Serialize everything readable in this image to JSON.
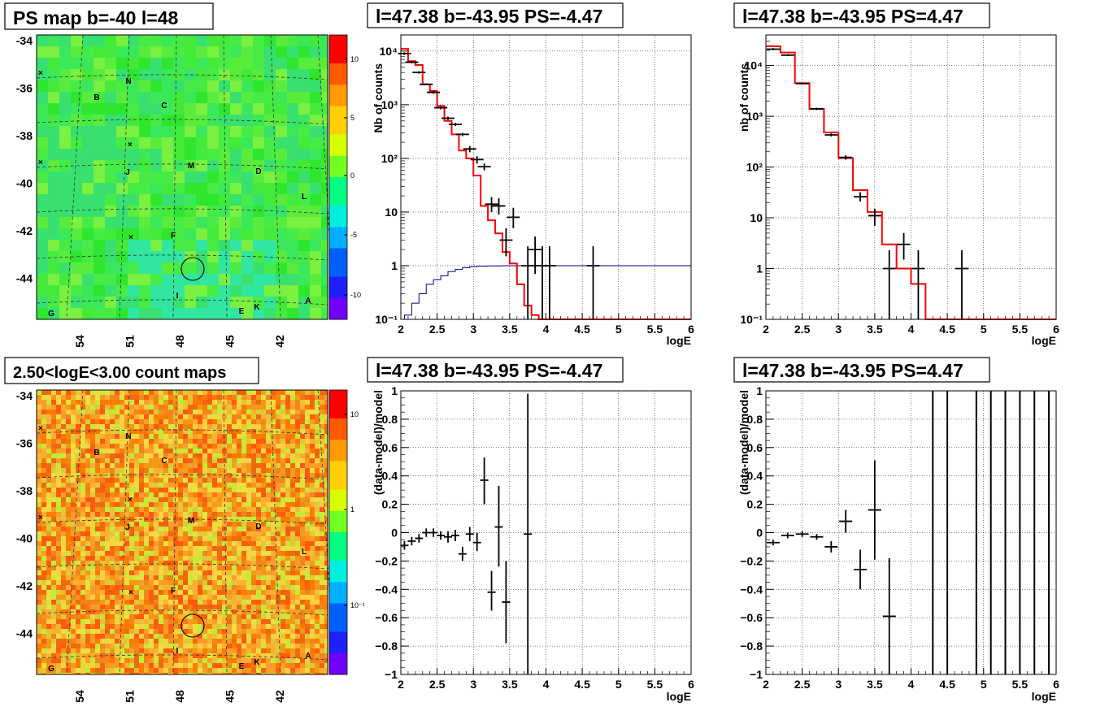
{
  "colors": {
    "model_line": "#ff0000",
    "exposure_line": "#00008b",
    "data_points": "#000000"
  },
  "maps": [
    {
      "title": "PS map b=-40 l=48",
      "type": "heatmap",
      "y_ticks": [
        "-34",
        "-36",
        "-38",
        "-40",
        "-42",
        "-44"
      ],
      "x_ticks": [
        "54",
        "51",
        "48",
        "45",
        "42"
      ],
      "colorbar_ticks": [
        "10",
        "5",
        "0",
        "-5",
        "-10"
      ],
      "colorbar_scale": "linear",
      "palette": "green-dominant",
      "markers": [
        "N",
        "B",
        "C",
        "M",
        "J",
        "D",
        "L",
        "F",
        "I",
        "A",
        "E",
        "K",
        "G"
      ]
    },
    {
      "title": "2.50<logE<3.00 count maps",
      "type": "heatmap",
      "y_ticks": [
        "-34",
        "-36",
        "-38",
        "-40",
        "-42",
        "-44"
      ],
      "x_ticks": [
        "54",
        "51",
        "48",
        "45",
        "42"
      ],
      "colorbar_ticks": [
        "10",
        "1",
        "10⁻¹"
      ],
      "colorbar_scale": "log",
      "palette": "orange-dominant",
      "markers": [
        "N",
        "B",
        "C",
        "M",
        "J",
        "D",
        "L",
        "F",
        "I",
        "A",
        "E",
        "K",
        "G"
      ]
    }
  ],
  "spectra": [
    {
      "title": "l=47.38 b=-43.95 PS=-4.47",
      "type": "line",
      "xlabel": "logE",
      "ylabel": "Nb of counts",
      "x_ticks": [
        "2",
        "2.5",
        "3",
        "3.5",
        "4",
        "4.5",
        "5",
        "5.5",
        "6"
      ],
      "y_ticks": [
        "10⁻¹",
        "1",
        "10",
        "10²",
        "10³",
        "10⁴"
      ],
      "xlim": [
        2,
        6
      ],
      "ylim": [
        0.1,
        20000
      ],
      "yscale": "log",
      "model": {
        "x": [
          2,
          2.1,
          2.2,
          2.3,
          2.4,
          2.5,
          2.6,
          2.7,
          2.8,
          2.9,
          3.0,
          3.1,
          3.2,
          3.3,
          3.4,
          3.5,
          3.6,
          3.7,
          3.8,
          3.9,
          4.0,
          4.1,
          6.0
        ],
        "y": [
          11000,
          6500,
          5500,
          2400,
          1800,
          950,
          500,
          280,
          140,
          100,
          48,
          13,
          7,
          4,
          1.8,
          1.1,
          0.45,
          0.18,
          0.12,
          0.1,
          0.1,
          0.1,
          0.1
        ]
      },
      "exposure": {
        "x": [
          2,
          2.05,
          2.15,
          2.25,
          2.35,
          2.45,
          2.55,
          2.65,
          2.75,
          2.85,
          2.95,
          3.05,
          3.2,
          3.4,
          4.0,
          6.0
        ],
        "y": [
          0.1,
          0.12,
          0.2,
          0.3,
          0.45,
          0.55,
          0.65,
          0.78,
          0.85,
          0.92,
          0.96,
          0.98,
          0.99,
          1.0,
          1.0,
          1.0
        ]
      },
      "points": [
        {
          "x": 2.05,
          "y": 9000,
          "lo": 8500,
          "hi": 9500
        },
        {
          "x": 2.15,
          "y": 6200,
          "lo": 5900,
          "hi": 6500
        },
        {
          "x": 2.25,
          "y": 4000,
          "lo": 3800,
          "hi": 4200
        },
        {
          "x": 2.35,
          "y": 2400,
          "lo": 2300,
          "hi": 2500
        },
        {
          "x": 2.45,
          "y": 1700,
          "lo": 1600,
          "hi": 1800
        },
        {
          "x": 2.55,
          "y": 880,
          "lo": 820,
          "hi": 940
        },
        {
          "x": 2.65,
          "y": 560,
          "lo": 520,
          "hi": 600
        },
        {
          "x": 2.75,
          "y": 430,
          "lo": 400,
          "hi": 460
        },
        {
          "x": 2.85,
          "y": 280,
          "lo": 260,
          "hi": 300
        },
        {
          "x": 2.95,
          "y": 150,
          "lo": 130,
          "hi": 170
        },
        {
          "x": 3.05,
          "y": 95,
          "lo": 80,
          "hi": 110
        },
        {
          "x": 3.15,
          "y": 70,
          "lo": 60,
          "hi": 80
        },
        {
          "x": 3.25,
          "y": 14,
          "lo": 10,
          "hi": 19
        },
        {
          "x": 3.35,
          "y": 13,
          "lo": 9,
          "hi": 18
        },
        {
          "x": 3.45,
          "y": 3,
          "lo": 1.5,
          "hi": 5
        },
        {
          "x": 3.55,
          "y": 8,
          "lo": 5,
          "hi": 12
        },
        {
          "x": 3.75,
          "y": 1,
          "lo": 0.1,
          "hi": 2.3
        },
        {
          "x": 3.85,
          "y": 2,
          "lo": 0.7,
          "hi": 3.5
        },
        {
          "x": 3.95,
          "y": 1,
          "lo": 0.1,
          "hi": 2.3
        },
        {
          "x": 4.05,
          "y": 1,
          "lo": 0.1,
          "hi": 2.3
        },
        {
          "x": 4.65,
          "y": 1,
          "lo": 0.1,
          "hi": 2.3
        }
      ]
    },
    {
      "title": "l=47.38 b=-43.95 PS=4.47",
      "type": "line",
      "xlabel": "logE",
      "ylabel": "nb of counts",
      "x_ticks": [
        "2",
        "2.5",
        "3",
        "3.5",
        "4",
        "4.5",
        "5",
        "5.5",
        "6"
      ],
      "y_ticks": [
        "10⁻¹",
        "1",
        "10",
        "10²",
        "10³",
        "10⁴"
      ],
      "xlim": [
        2,
        6
      ],
      "ylim": [
        0.1,
        40000
      ],
      "yscale": "log",
      "model": {
        "x": [
          2,
          2.2,
          2.4,
          2.6,
          2.8,
          3.0,
          3.2,
          3.4,
          3.6,
          3.8,
          4.0,
          4.2,
          6.0
        ],
        "y": [
          24000,
          18000,
          4500,
          1400,
          480,
          150,
          35,
          13,
          3,
          1,
          0.5,
          0.1,
          0.1
        ]
      },
      "points": [
        {
          "x": 2.1,
          "y": 21000,
          "lo": 20000,
          "hi": 22000
        },
        {
          "x": 2.3,
          "y": 16000,
          "lo": 15300,
          "hi": 16700
        },
        {
          "x": 2.5,
          "y": 4400,
          "lo": 4200,
          "hi": 4600
        },
        {
          "x": 2.7,
          "y": 1400,
          "lo": 1320,
          "hi": 1480
        },
        {
          "x": 2.9,
          "y": 430,
          "lo": 400,
          "hi": 460
        },
        {
          "x": 3.1,
          "y": 155,
          "lo": 140,
          "hi": 170
        },
        {
          "x": 3.3,
          "y": 26,
          "lo": 21,
          "hi": 32
        },
        {
          "x": 3.5,
          "y": 11,
          "lo": 7,
          "hi": 15
        },
        {
          "x": 3.7,
          "y": 1,
          "lo": 0.1,
          "hi": 2.3
        },
        {
          "x": 3.9,
          "y": 3,
          "lo": 1.5,
          "hi": 5
        },
        {
          "x": 4.1,
          "y": 1,
          "lo": 0.1,
          "hi": 2.3
        },
        {
          "x": 4.7,
          "y": 1,
          "lo": 0.1,
          "hi": 2.3
        }
      ]
    }
  ],
  "residuals": [
    {
      "title": "l=47.38 b=-43.95 PS=-4.47",
      "type": "scatter",
      "xlabel": "logE",
      "ylabel": "(data-model)/model",
      "x_ticks": [
        "2",
        "2.5",
        "3",
        "3.5",
        "4",
        "4.5",
        "5",
        "5.5",
        "6"
      ],
      "y_ticks": [
        "1",
        "0.8",
        "0.6",
        "0.4",
        "0.2",
        "0",
        "−0.2",
        "−0.4",
        "−0.6",
        "−0.8",
        "−1"
      ],
      "xlim": [
        2,
        6
      ],
      "ylim": [
        -1,
        1
      ],
      "points": [
        {
          "x": 2.05,
          "y": -0.09,
          "lo": -0.12,
          "hi": -0.06
        },
        {
          "x": 2.15,
          "y": -0.06,
          "lo": -0.09,
          "hi": -0.03
        },
        {
          "x": 2.25,
          "y": -0.04,
          "lo": -0.07,
          "hi": -0.01
        },
        {
          "x": 2.35,
          "y": 0.0,
          "lo": -0.03,
          "hi": 0.03
        },
        {
          "x": 2.45,
          "y": 0.0,
          "lo": -0.03,
          "hi": 0.03
        },
        {
          "x": 2.55,
          "y": -0.02,
          "lo": -0.05,
          "hi": 0.01
        },
        {
          "x": 2.65,
          "y": -0.03,
          "lo": -0.07,
          "hi": 0.01
        },
        {
          "x": 2.75,
          "y": -0.02,
          "lo": -0.06,
          "hi": 0.02
        },
        {
          "x": 2.85,
          "y": -0.15,
          "lo": -0.2,
          "hi": -0.1
        },
        {
          "x": 2.95,
          "y": -0.01,
          "lo": -0.06,
          "hi": 0.04
        },
        {
          "x": 3.05,
          "y": -0.07,
          "lo": -0.13,
          "hi": 0.0
        },
        {
          "x": 3.15,
          "y": 0.37,
          "lo": 0.2,
          "hi": 0.53
        },
        {
          "x": 3.25,
          "y": -0.42,
          "lo": -0.55,
          "hi": -0.27
        },
        {
          "x": 3.35,
          "y": 0.04,
          "lo": -0.24,
          "hi": 0.33
        },
        {
          "x": 3.45,
          "y": -0.49,
          "lo": -0.78,
          "hi": -0.2
        },
        {
          "x": 3.75,
          "y": -0.01,
          "lo": -1.0,
          "hi": 0.98
        }
      ]
    },
    {
      "title": "l=47.38 b=-43.95 PS=4.47",
      "type": "scatter",
      "xlabel": "logE",
      "ylabel": "(data-model)/model",
      "x_ticks": [
        "2",
        "2.5",
        "3",
        "3.5",
        "4",
        "4.5",
        "5",
        "5.5",
        "6"
      ],
      "y_ticks": [
        "1",
        "0.8",
        "0.6",
        "0.4",
        "0.2",
        "0",
        "−0.2",
        "−0.4",
        "−0.6",
        "−0.8",
        "−1"
      ],
      "xlim": [
        2,
        6
      ],
      "ylim": [
        -1,
        1
      ],
      "points": [
        {
          "x": 2.1,
          "y": -0.07,
          "lo": -0.09,
          "hi": -0.05
        },
        {
          "x": 2.3,
          "y": -0.02,
          "lo": -0.04,
          "hi": 0.0
        },
        {
          "x": 2.5,
          "y": -0.01,
          "lo": -0.03,
          "hi": 0.01
        },
        {
          "x": 2.7,
          "y": -0.03,
          "lo": -0.05,
          "hi": -0.01
        },
        {
          "x": 2.9,
          "y": -0.1,
          "lo": -0.14,
          "hi": -0.06
        },
        {
          "x": 3.1,
          "y": 0.08,
          "lo": 0.0,
          "hi": 0.16
        },
        {
          "x": 3.3,
          "y": -0.26,
          "lo": -0.4,
          "hi": -0.12
        },
        {
          "x": 3.5,
          "y": 0.16,
          "lo": -0.19,
          "hi": 0.51
        },
        {
          "x": 3.7,
          "y": -0.59,
          "lo": -1.0,
          "hi": -0.18
        }
      ],
      "full_bars_x": [
        4.3,
        4.5,
        4.9,
        5.1,
        5.3,
        5.5,
        5.7,
        5.9
      ]
    }
  ]
}
